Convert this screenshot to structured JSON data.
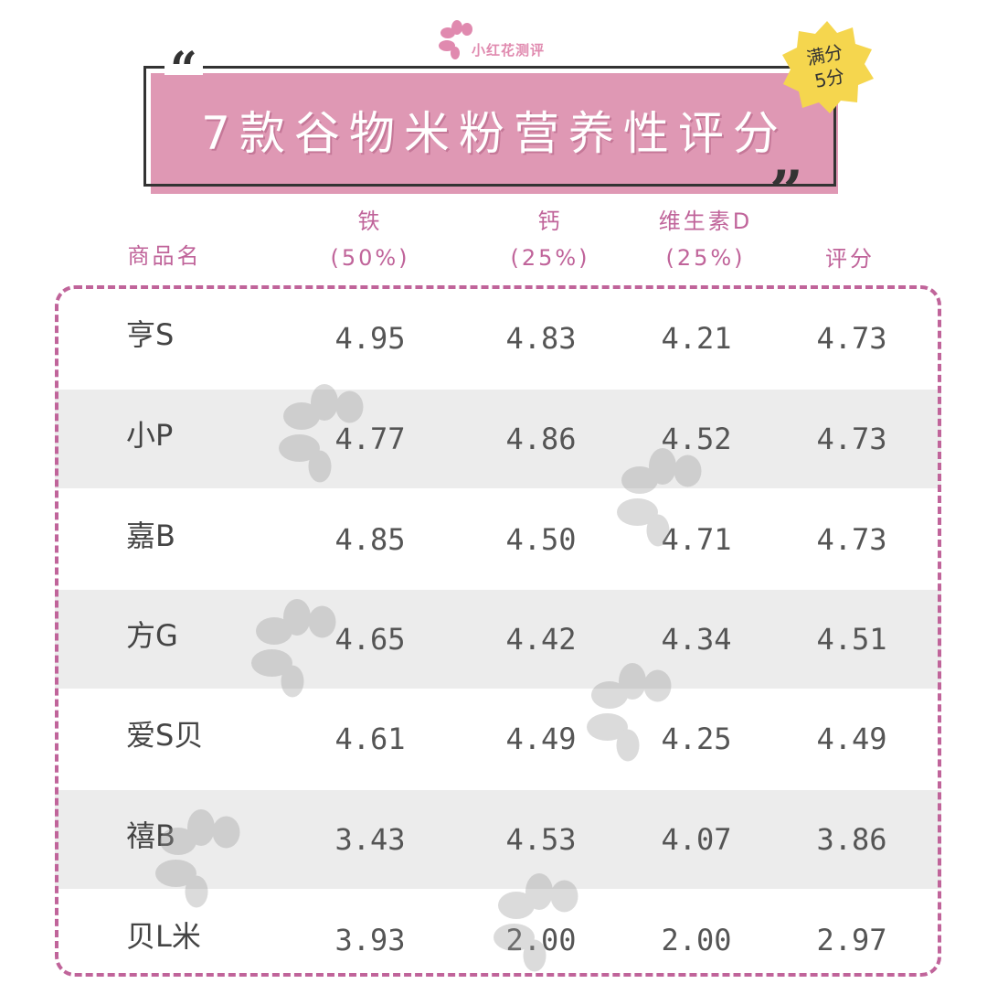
{
  "brand": {
    "name": "小红花测评"
  },
  "title": "7款谷物米粉营养性评分",
  "badge": {
    "line1": "满分",
    "line2": "5分"
  },
  "colors": {
    "accent": "#df98b4",
    "header_text": "#c0649a",
    "border": "#c0649a",
    "badge": "#f5d64e",
    "row_shade": "#ececec"
  },
  "columns": [
    {
      "line1": "商品名",
      "line2": ""
    },
    {
      "line1": "铁",
      "line2": "(50%)"
    },
    {
      "line1": "钙",
      "line2": "(25%)"
    },
    {
      "line1": "维生素D",
      "line2": "(25%)"
    },
    {
      "line1": "评分",
      "line2": ""
    }
  ],
  "rows": [
    {
      "name": "亨S",
      "iron": "4.95",
      "calcium": "4.83",
      "vitd": "4.21",
      "score": "4.73"
    },
    {
      "name": "小P",
      "iron": "4.77",
      "calcium": "4.86",
      "vitd": "4.52",
      "score": "4.73"
    },
    {
      "name": "嘉B",
      "iron": "4.85",
      "calcium": "4.50",
      "vitd": "4.71",
      "score": "4.73"
    },
    {
      "name": "方G",
      "iron": "4.65",
      "calcium": "4.42",
      "vitd": "4.34",
      "score": "4.51"
    },
    {
      "name": "爱S贝",
      "iron": "4.61",
      "calcium": "4.49",
      "vitd": "4.25",
      "score": "4.49"
    },
    {
      "name": "禧B",
      "iron": "3.43",
      "calcium": "4.53",
      "vitd": "4.07",
      "score": "3.86"
    },
    {
      "name": "贝L米",
      "iron": "3.93",
      "calcium": "2.00",
      "vitd": "2.00",
      "score": "2.97"
    }
  ]
}
